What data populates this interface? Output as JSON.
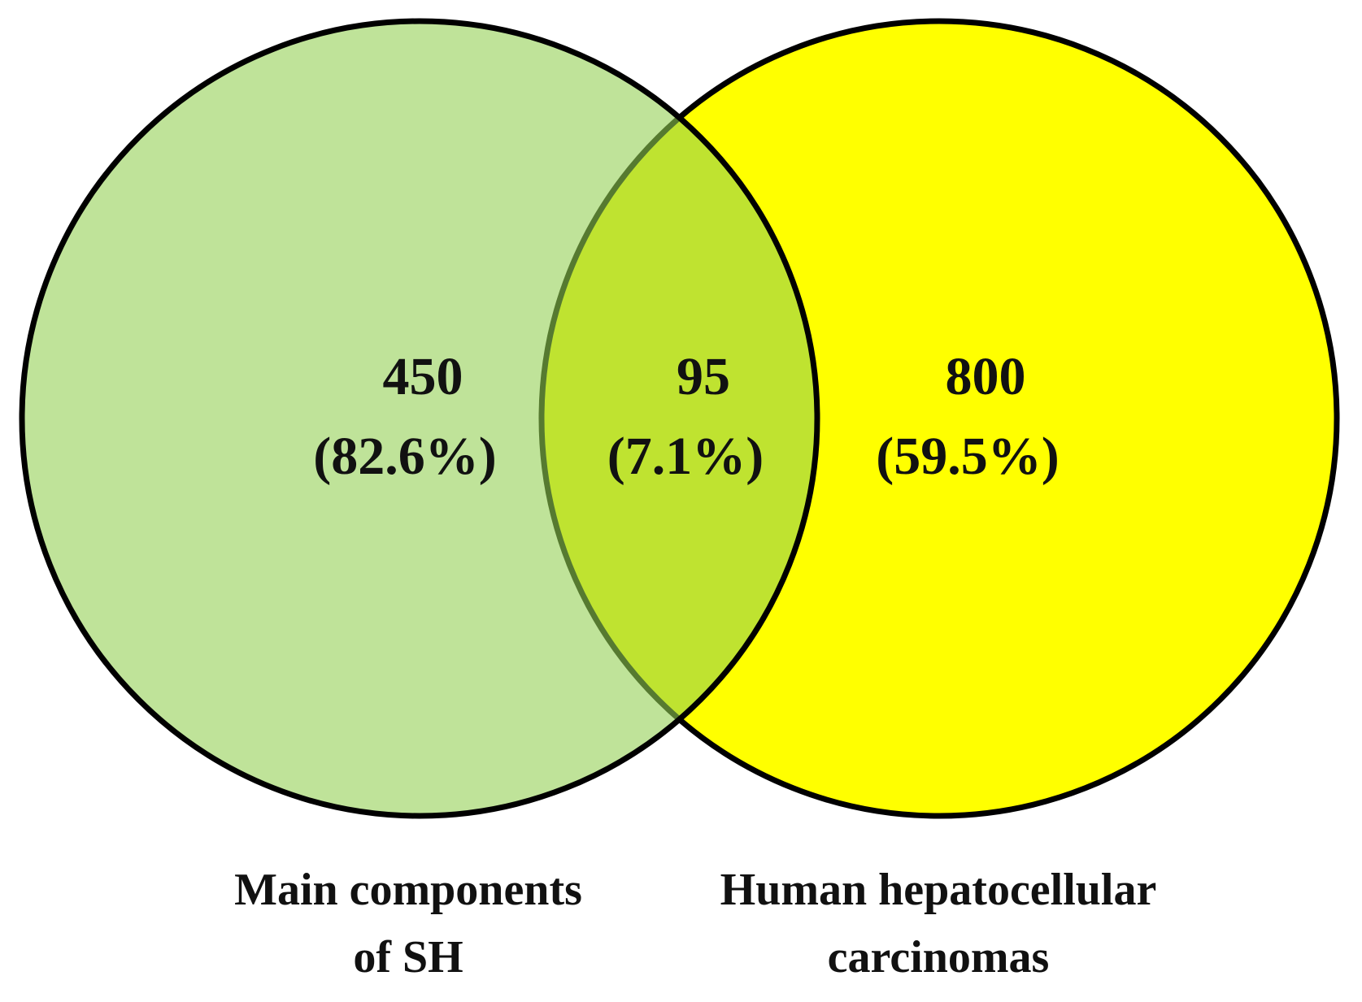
{
  "chart_data": {
    "type": "venn",
    "sets": [
      {
        "name": [
          "Main components",
          "of SH"
        ],
        "color": "#93d051",
        "opacity": 0.59
      },
      {
        "name": [
          "Human hepatocellular",
          "carcinomas"
        ],
        "color": "#ffff00",
        "opacity": 1
      }
    ],
    "values": [
      450,
      95,
      800
    ],
    "percentages": [
      {
        "value": 82.6,
        "label": "(82.6%)"
      },
      {
        "value": 7.1,
        "label": "(7.1%)"
      },
      {
        "value": 59.5,
        "label": "(59.5%)"
      }
    ]
  }
}
